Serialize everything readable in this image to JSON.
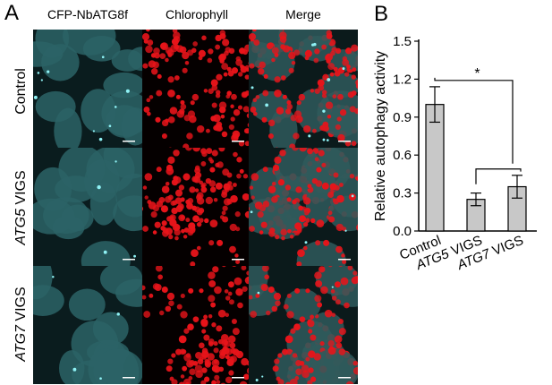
{
  "panels": {
    "a": "A",
    "b": "B"
  },
  "columns": [
    "CFP-NbATG8f",
    "Chlorophyll",
    "Merge"
  ],
  "rows": [
    {
      "gene": "",
      "rest": "Control"
    },
    {
      "gene": "ATG5",
      "rest": " VIGS"
    },
    {
      "gene": "ATG7",
      "rest": " VIGS"
    }
  ],
  "colors": {
    "cfp": "#3fb8c0",
    "chlorophyll": "#e8141a",
    "bar_fill": "#c8c8c8"
  },
  "chart_data": {
    "type": "bar",
    "categories": [
      "Control",
      "ATG5 VIGS",
      "ATG7 VIGS"
    ],
    "category_parts": [
      {
        "gene": "",
        "rest": "Control"
      },
      {
        "gene": "ATG5",
        "rest": " VIGS"
      },
      {
        "gene": "ATG7",
        "rest": " VIGS"
      }
    ],
    "values": [
      1.0,
      0.25,
      0.35
    ],
    "errors": [
      0.14,
      0.05,
      0.09
    ],
    "ylabel": "Relative autophagy activity",
    "ylim": [
      0,
      1.5
    ],
    "yticks": [
      0.0,
      0.3,
      0.6,
      0.9,
      1.2,
      1.5
    ],
    "ytick_labels": [
      "0.0",
      "0.3",
      "0.6",
      "0.9",
      "1.2",
      "1.5"
    ],
    "significance": {
      "label": "*",
      "between": [
        "Control",
        "ATG5 VIGS + ATG7 VIGS"
      ]
    },
    "grid": false,
    "legend": "none"
  }
}
